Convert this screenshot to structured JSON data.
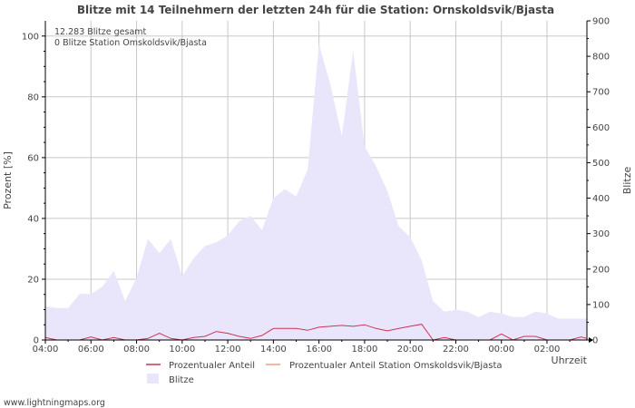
{
  "chart_data": {
    "type": "area",
    "title": "Blitze mit 14 Teilnehmern der letzten 24h für die Station: Ornskoldsvik/Bjasta",
    "ylabel_left": "Prozent   [%]",
    "ylabel_right": "Blitze",
    "xlabel": "Uhrzeit",
    "ylim_left": [
      0,
      105
    ],
    "ylim_right": [
      0,
      900
    ],
    "yticks_left": [
      0,
      20,
      40,
      60,
      80,
      100
    ],
    "yticks_right": [
      0,
      100,
      200,
      300,
      400,
      500,
      600,
      700,
      800,
      900
    ],
    "xlim": [
      4,
      27.75
    ],
    "x_tick_labels": [
      "04:00",
      "06:00",
      "08:00",
      "10:00",
      "12:00",
      "14:00",
      "16:00",
      "18:00",
      "20:00",
      "22:00",
      "00:00",
      "02:00"
    ],
    "annotations": [
      "12.283 Blitze gesamt",
      "0 Blitze Station Omskoldsvik/Bjasta"
    ],
    "legend": [
      "Prozentualer Anteil",
      "Prozentualer Anteil Station Omskoldsvik/Bjasta",
      "Blitze"
    ],
    "colors": {
      "blitze_fill": "#e9e6fc",
      "prozent_line": "#cc3355",
      "station_line": "#f0a080",
      "grid": "#c8c8c8",
      "axis": "#000000"
    },
    "series": [
      {
        "name": "Blitze",
        "axis": "right",
        "x": [
          4,
          4.5,
          5,
          5.5,
          6,
          6.5,
          7,
          7.5,
          8,
          8.5,
          9,
          9.5,
          10,
          10.5,
          11,
          11.5,
          12,
          12.5,
          13,
          13.5,
          14,
          14.5,
          15,
          15.5,
          16,
          16.5,
          17,
          17.5,
          18,
          18.5,
          19,
          19.5,
          20,
          20.5,
          21,
          21.5,
          22,
          22.5,
          23,
          23.5,
          24,
          24.5,
          25,
          25.5,
          26,
          26.5,
          27,
          27.5,
          27.75
        ],
        "values": [
          95,
          90,
          90,
          130,
          130,
          150,
          195,
          110,
          175,
          285,
          245,
          285,
          180,
          230,
          265,
          275,
          295,
          335,
          350,
          310,
          400,
          425,
          405,
          480,
          835,
          720,
          575,
          815,
          545,
          490,
          420,
          320,
          290,
          225,
          110,
          80,
          85,
          80,
          65,
          80,
          75,
          65,
          65,
          80,
          75,
          60,
          60,
          60,
          60
        ]
      },
      {
        "name": "Prozentualer Anteil",
        "axis": "left",
        "x": [
          4,
          4.5,
          5,
          5.5,
          6,
          6.5,
          7,
          7.5,
          8,
          8.5,
          9,
          9.5,
          10,
          10.5,
          11,
          11.5,
          12,
          12.5,
          13,
          13.5,
          14,
          14.5,
          15,
          15.5,
          16,
          16.5,
          17,
          17.5,
          18,
          18.5,
          19,
          19.5,
          20,
          20.5,
          21,
          21.5,
          22,
          22.5,
          23,
          23.5,
          24,
          24.5,
          25,
          25.5,
          26,
          26.5,
          27,
          27.5,
          27.75
        ],
        "values": [
          0.8,
          0,
          0,
          0,
          1.0,
          0,
          0.8,
          0,
          0,
          0.5,
          2.2,
          0.5,
          0,
          0.8,
          1.2,
          2.8,
          2.2,
          1.2,
          0.5,
          1.5,
          3.8,
          3.8,
          3.8,
          3.2,
          4.2,
          4.5,
          4.8,
          4.5,
          5.0,
          3.8,
          3.0,
          3.8,
          4.5,
          5.2,
          0,
          0.8,
          0,
          0,
          0,
          0,
          2.0,
          0,
          1.2,
          1.2,
          0,
          0,
          0,
          1.0,
          0.5
        ]
      },
      {
        "name": "Prozentualer Anteil Station Omskoldsvik/Bjasta",
        "axis": "left",
        "x": [
          4,
          27.75
        ],
        "values": [
          0,
          0
        ]
      }
    ]
  }
}
